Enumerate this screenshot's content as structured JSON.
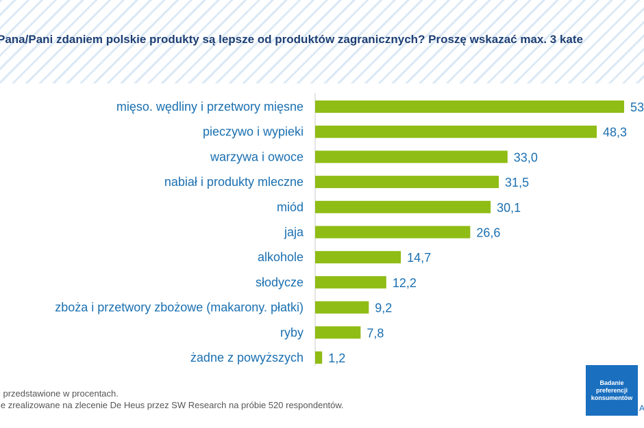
{
  "question": "Pana/Pani zdaniem polskie produkty są lepsze od produktów zagranicznych? Proszę wskazać max. 3 kate",
  "chart_data": {
    "type": "bar",
    "orientation": "horizontal",
    "categories": [
      "mięso. wędliny i przetwory mięsne",
      "pieczywo i wypieki",
      "warzywa i owoce",
      "nabiał i produkty mleczne",
      "miód",
      "jaja",
      "alkohole",
      "słodycze",
      "zboża i przetwory zbożowe (makarony. płatki)",
      "ryby",
      "żadne z powyższych"
    ],
    "values": [
      53.0,
      48.3,
      33.0,
      31.5,
      30.1,
      26.6,
      14.7,
      12.2,
      9.2,
      7.8,
      1.2
    ],
    "value_labels": [
      "53",
      "48,3",
      "33,0",
      "31,5",
      "30,1",
      "26,6",
      "14,7",
      "12,2",
      "9,2",
      "7,8",
      "1,2"
    ],
    "xlim": [
      0,
      55
    ],
    "grid": false,
    "bar_color": "#8fbc15",
    "label_color": "#1a6fb0"
  },
  "footnotes": [
    "i przedstawione w procentach.",
    "ie zrealizowane na zlecenie De Heus przez SW Research na próbie 520 respondentów."
  ],
  "badge": {
    "line1": "Badanie",
    "line2": "preferencji",
    "line3": "konsumentów",
    "color": "#1a6fbf"
  },
  "corner_mark": "A"
}
